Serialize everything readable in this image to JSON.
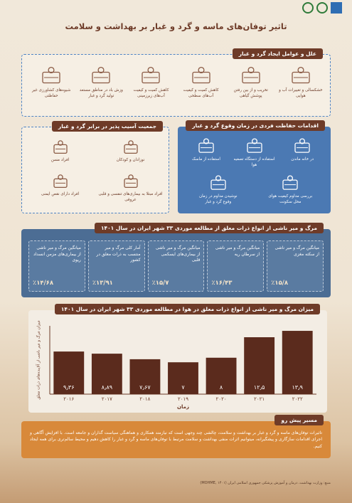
{
  "header": {
    "title": "تاثیر توفان‌های ماسه و گرد و غبار بر بهداشت و سلامت"
  },
  "causes": {
    "title": "علل و عوامل ایجاد گرد و غبار",
    "items": [
      "خشکسالی و تغییرات آب و هوایی",
      "تخریب و از بین رفتن پوشش گیاهی",
      "کاهش کمیت و کیفیت آب‌های سطحی",
      "کاهش کمیت و کیفیت آب‌های زیرزمینی",
      "وزش باد در مناطق مستعد تولید گرد و غبار",
      "شیوه‌های کشاورزی غیر حفاظتی"
    ]
  },
  "protection": {
    "title": "اقدامات حفاظت فردی در زمان وقوع گرد و غبار",
    "items": [
      "در خانه ماندن",
      "استفاده از دستگاه تصفیه هوا",
      "استفاده از ماسک",
      "بررسی مداوم کیفیت هوای محل سکونت",
      "نوشیدن مداوم در زمان وقوع گرد و غبار"
    ]
  },
  "vulnerable": {
    "title": "جمعیت آسیب پذیر در برابر گرد و غبار",
    "items": [
      "نوزادان و کودکان",
      "افراد مسن",
      "افراد مبتلا به بیماری‌های تنفسی و قلبی عروقی",
      "افراد دارای نقص ایمنی"
    ]
  },
  "mortality": {
    "title": "مرگ و میر ناشی از انواع ذرات معلق از مطالعه موردی ۳۳ شهر ایران در سال ۱۴۰۱",
    "items": [
      {
        "label": "میانگین مرگ و میر ناشی از سکته مغزی",
        "value": "٪۱۵/۸"
      },
      {
        "label": "میانگین مرگ و میر ناشی از سرطان ریه",
        "value": "٪۱۶/۴۳"
      },
      {
        "label": "میانگین مرگ و میر ناشی از بیماری‌های ایسکمی قلبی",
        "value": "٪۱۵/۷"
      },
      {
        "label": "آمار کلی مرگ و میر منتسب به ذرات معلق در کشور",
        "value": "٪۱۳/۹۱"
      },
      {
        "label": "میانگین مرگ و میر ناشی از بیماری‌های مزمن انسداد ریوی",
        "value": "٪۱۴/۶۸"
      }
    ]
  },
  "chart_data": {
    "type": "bar",
    "title": "میزان مرگ و میر ناشی از انواع ذرات معلق در هوا در مطالعه موردی ۳۳ شهر ایران در سال ۱۴۰۱",
    "x_label": "زمان",
    "y_label": "میزان مرگ و میر ناشی از آلاینده‌های ذرات معلق",
    "categories": [
      "۲۰۱۶",
      "۲۰۱۷",
      "۲۰۱۸",
      "۲۰۱۹",
      "۲۰۲۰",
      "۲۰۲۱",
      "۲۰۲۲"
    ],
    "values": [
      9.36,
      8.89,
      7.67,
      7,
      8,
      12.5,
      13.9
    ],
    "value_labels": [
      "۹٫۳۶",
      "۸٫۸۹",
      "۷٫۶۷",
      "۷",
      "۸",
      "۱۲٫۵",
      "۱۳٫۹"
    ],
    "color": "#5b2b1d",
    "ylim": [
      0,
      15
    ]
  },
  "outlook": {
    "title": "مسیر پیش رو",
    "text": "تاثیرات توفان‌های ماسه و گرد و غبار بر بهداشت و سلامت، چالشی چند وجهی است که نیازمند همکاری و هماهنگی سیاست گذاران و جامعه است. با افزایش آگاهی و اجرای اقدامات سازگاری و پیشگیرانه، میتوانیم اثرات منفی بهداشت و سلامت مرتبط با توفان‌های ماسه و گرد و غبار را کاهش دهیم و محیط سالم‌تری برای همه ایجاد کنیم."
  },
  "footer": {
    "source": "منبع: وزارت بهداشت، درمان و آموزش پزشکی جمهوری اسلامی ایران (MOHME, ۱۴۰۱)"
  }
}
